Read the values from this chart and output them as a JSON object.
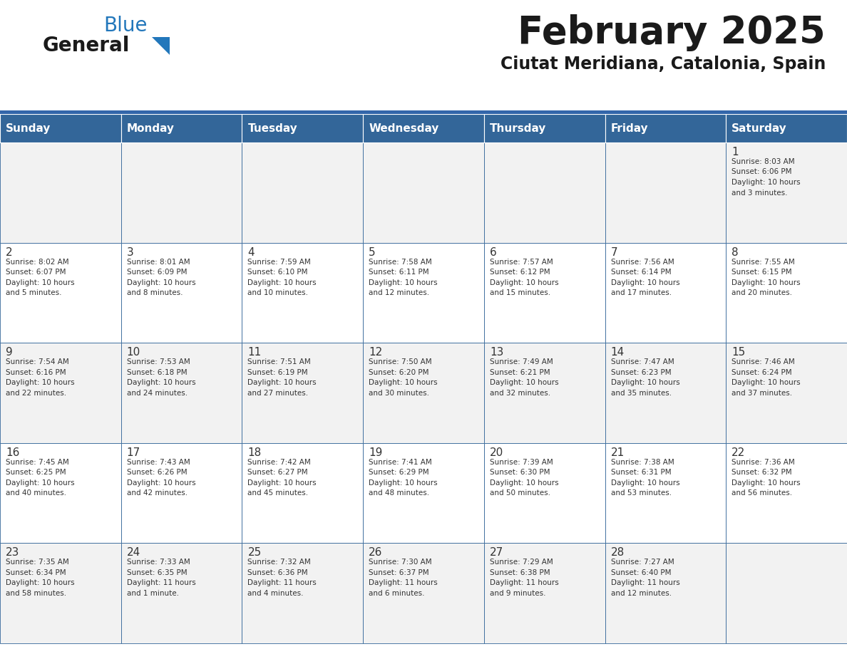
{
  "title": "February 2025",
  "subtitle": "Ciutat Meridiana, Catalonia, Spain",
  "header_bg": "#336699",
  "header_text": "#ffffff",
  "cell_bg_odd": "#f2f2f2",
  "cell_bg_even": "#ffffff",
  "day_headers": [
    "Sunday",
    "Monday",
    "Tuesday",
    "Wednesday",
    "Thursday",
    "Friday",
    "Saturday"
  ],
  "title_color": "#1a1a1a",
  "subtitle_color": "#1a1a1a",
  "text_color": "#333333",
  "day_num_color": "#333333",
  "logo_general_color": "#1a1a1a",
  "logo_blue_color": "#2277bb",
  "border_color": "#336699",
  "separator_color": "#3366aa",
  "weeks": [
    [
      {
        "day": null,
        "info": null
      },
      {
        "day": null,
        "info": null
      },
      {
        "day": null,
        "info": null
      },
      {
        "day": null,
        "info": null
      },
      {
        "day": null,
        "info": null
      },
      {
        "day": null,
        "info": null
      },
      {
        "day": 1,
        "info": "Sunrise: 8:03 AM\nSunset: 6:06 PM\nDaylight: 10 hours\nand 3 minutes."
      }
    ],
    [
      {
        "day": 2,
        "info": "Sunrise: 8:02 AM\nSunset: 6:07 PM\nDaylight: 10 hours\nand 5 minutes."
      },
      {
        "day": 3,
        "info": "Sunrise: 8:01 AM\nSunset: 6:09 PM\nDaylight: 10 hours\nand 8 minutes."
      },
      {
        "day": 4,
        "info": "Sunrise: 7:59 AM\nSunset: 6:10 PM\nDaylight: 10 hours\nand 10 minutes."
      },
      {
        "day": 5,
        "info": "Sunrise: 7:58 AM\nSunset: 6:11 PM\nDaylight: 10 hours\nand 12 minutes."
      },
      {
        "day": 6,
        "info": "Sunrise: 7:57 AM\nSunset: 6:12 PM\nDaylight: 10 hours\nand 15 minutes."
      },
      {
        "day": 7,
        "info": "Sunrise: 7:56 AM\nSunset: 6:14 PM\nDaylight: 10 hours\nand 17 minutes."
      },
      {
        "day": 8,
        "info": "Sunrise: 7:55 AM\nSunset: 6:15 PM\nDaylight: 10 hours\nand 20 minutes."
      }
    ],
    [
      {
        "day": 9,
        "info": "Sunrise: 7:54 AM\nSunset: 6:16 PM\nDaylight: 10 hours\nand 22 minutes."
      },
      {
        "day": 10,
        "info": "Sunrise: 7:53 AM\nSunset: 6:18 PM\nDaylight: 10 hours\nand 24 minutes."
      },
      {
        "day": 11,
        "info": "Sunrise: 7:51 AM\nSunset: 6:19 PM\nDaylight: 10 hours\nand 27 minutes."
      },
      {
        "day": 12,
        "info": "Sunrise: 7:50 AM\nSunset: 6:20 PM\nDaylight: 10 hours\nand 30 minutes."
      },
      {
        "day": 13,
        "info": "Sunrise: 7:49 AM\nSunset: 6:21 PM\nDaylight: 10 hours\nand 32 minutes."
      },
      {
        "day": 14,
        "info": "Sunrise: 7:47 AM\nSunset: 6:23 PM\nDaylight: 10 hours\nand 35 minutes."
      },
      {
        "day": 15,
        "info": "Sunrise: 7:46 AM\nSunset: 6:24 PM\nDaylight: 10 hours\nand 37 minutes."
      }
    ],
    [
      {
        "day": 16,
        "info": "Sunrise: 7:45 AM\nSunset: 6:25 PM\nDaylight: 10 hours\nand 40 minutes."
      },
      {
        "day": 17,
        "info": "Sunrise: 7:43 AM\nSunset: 6:26 PM\nDaylight: 10 hours\nand 42 minutes."
      },
      {
        "day": 18,
        "info": "Sunrise: 7:42 AM\nSunset: 6:27 PM\nDaylight: 10 hours\nand 45 minutes."
      },
      {
        "day": 19,
        "info": "Sunrise: 7:41 AM\nSunset: 6:29 PM\nDaylight: 10 hours\nand 48 minutes."
      },
      {
        "day": 20,
        "info": "Sunrise: 7:39 AM\nSunset: 6:30 PM\nDaylight: 10 hours\nand 50 minutes."
      },
      {
        "day": 21,
        "info": "Sunrise: 7:38 AM\nSunset: 6:31 PM\nDaylight: 10 hours\nand 53 minutes."
      },
      {
        "day": 22,
        "info": "Sunrise: 7:36 AM\nSunset: 6:32 PM\nDaylight: 10 hours\nand 56 minutes."
      }
    ],
    [
      {
        "day": 23,
        "info": "Sunrise: 7:35 AM\nSunset: 6:34 PM\nDaylight: 10 hours\nand 58 minutes."
      },
      {
        "day": 24,
        "info": "Sunrise: 7:33 AM\nSunset: 6:35 PM\nDaylight: 11 hours\nand 1 minute."
      },
      {
        "day": 25,
        "info": "Sunrise: 7:32 AM\nSunset: 6:36 PM\nDaylight: 11 hours\nand 4 minutes."
      },
      {
        "day": 26,
        "info": "Sunrise: 7:30 AM\nSunset: 6:37 PM\nDaylight: 11 hours\nand 6 minutes."
      },
      {
        "day": 27,
        "info": "Sunrise: 7:29 AM\nSunset: 6:38 PM\nDaylight: 11 hours\nand 9 minutes."
      },
      {
        "day": 28,
        "info": "Sunrise: 7:27 AM\nSunset: 6:40 PM\nDaylight: 11 hours\nand 12 minutes."
      },
      {
        "day": null,
        "info": null
      }
    ]
  ]
}
